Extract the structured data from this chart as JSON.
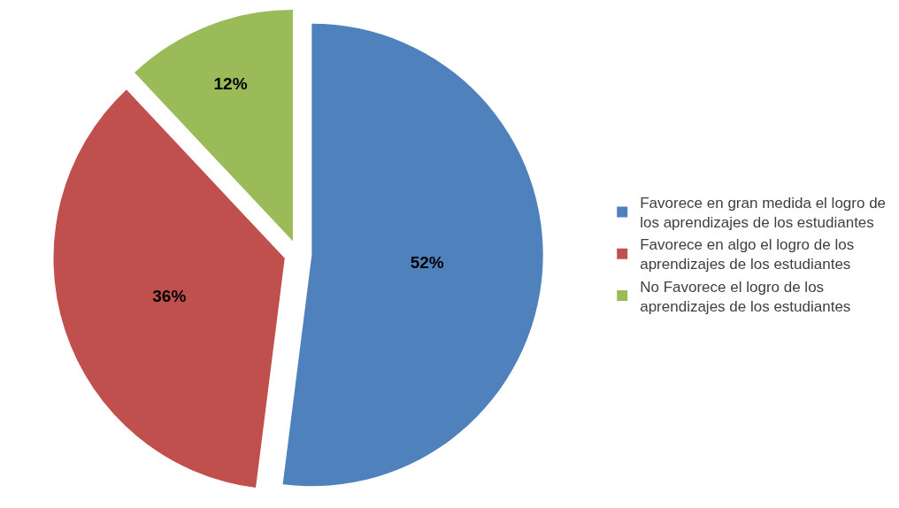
{
  "chart_data": {
    "type": "pie",
    "categories": [
      "Favorece en gran medida el logro de los aprendizajes de los estudiantes",
      "Favorece en algo el logro de los aprendizajes de los estudiantes",
      "No Favorece el logro de los aprendizajes de los estudiantes"
    ],
    "values": [
      52,
      36,
      12
    ],
    "value_labels": [
      "52%",
      "36%",
      "12%"
    ],
    "colors": [
      "#4f81bd",
      "#c0504d",
      "#9bbb59"
    ],
    "legend": "right"
  }
}
